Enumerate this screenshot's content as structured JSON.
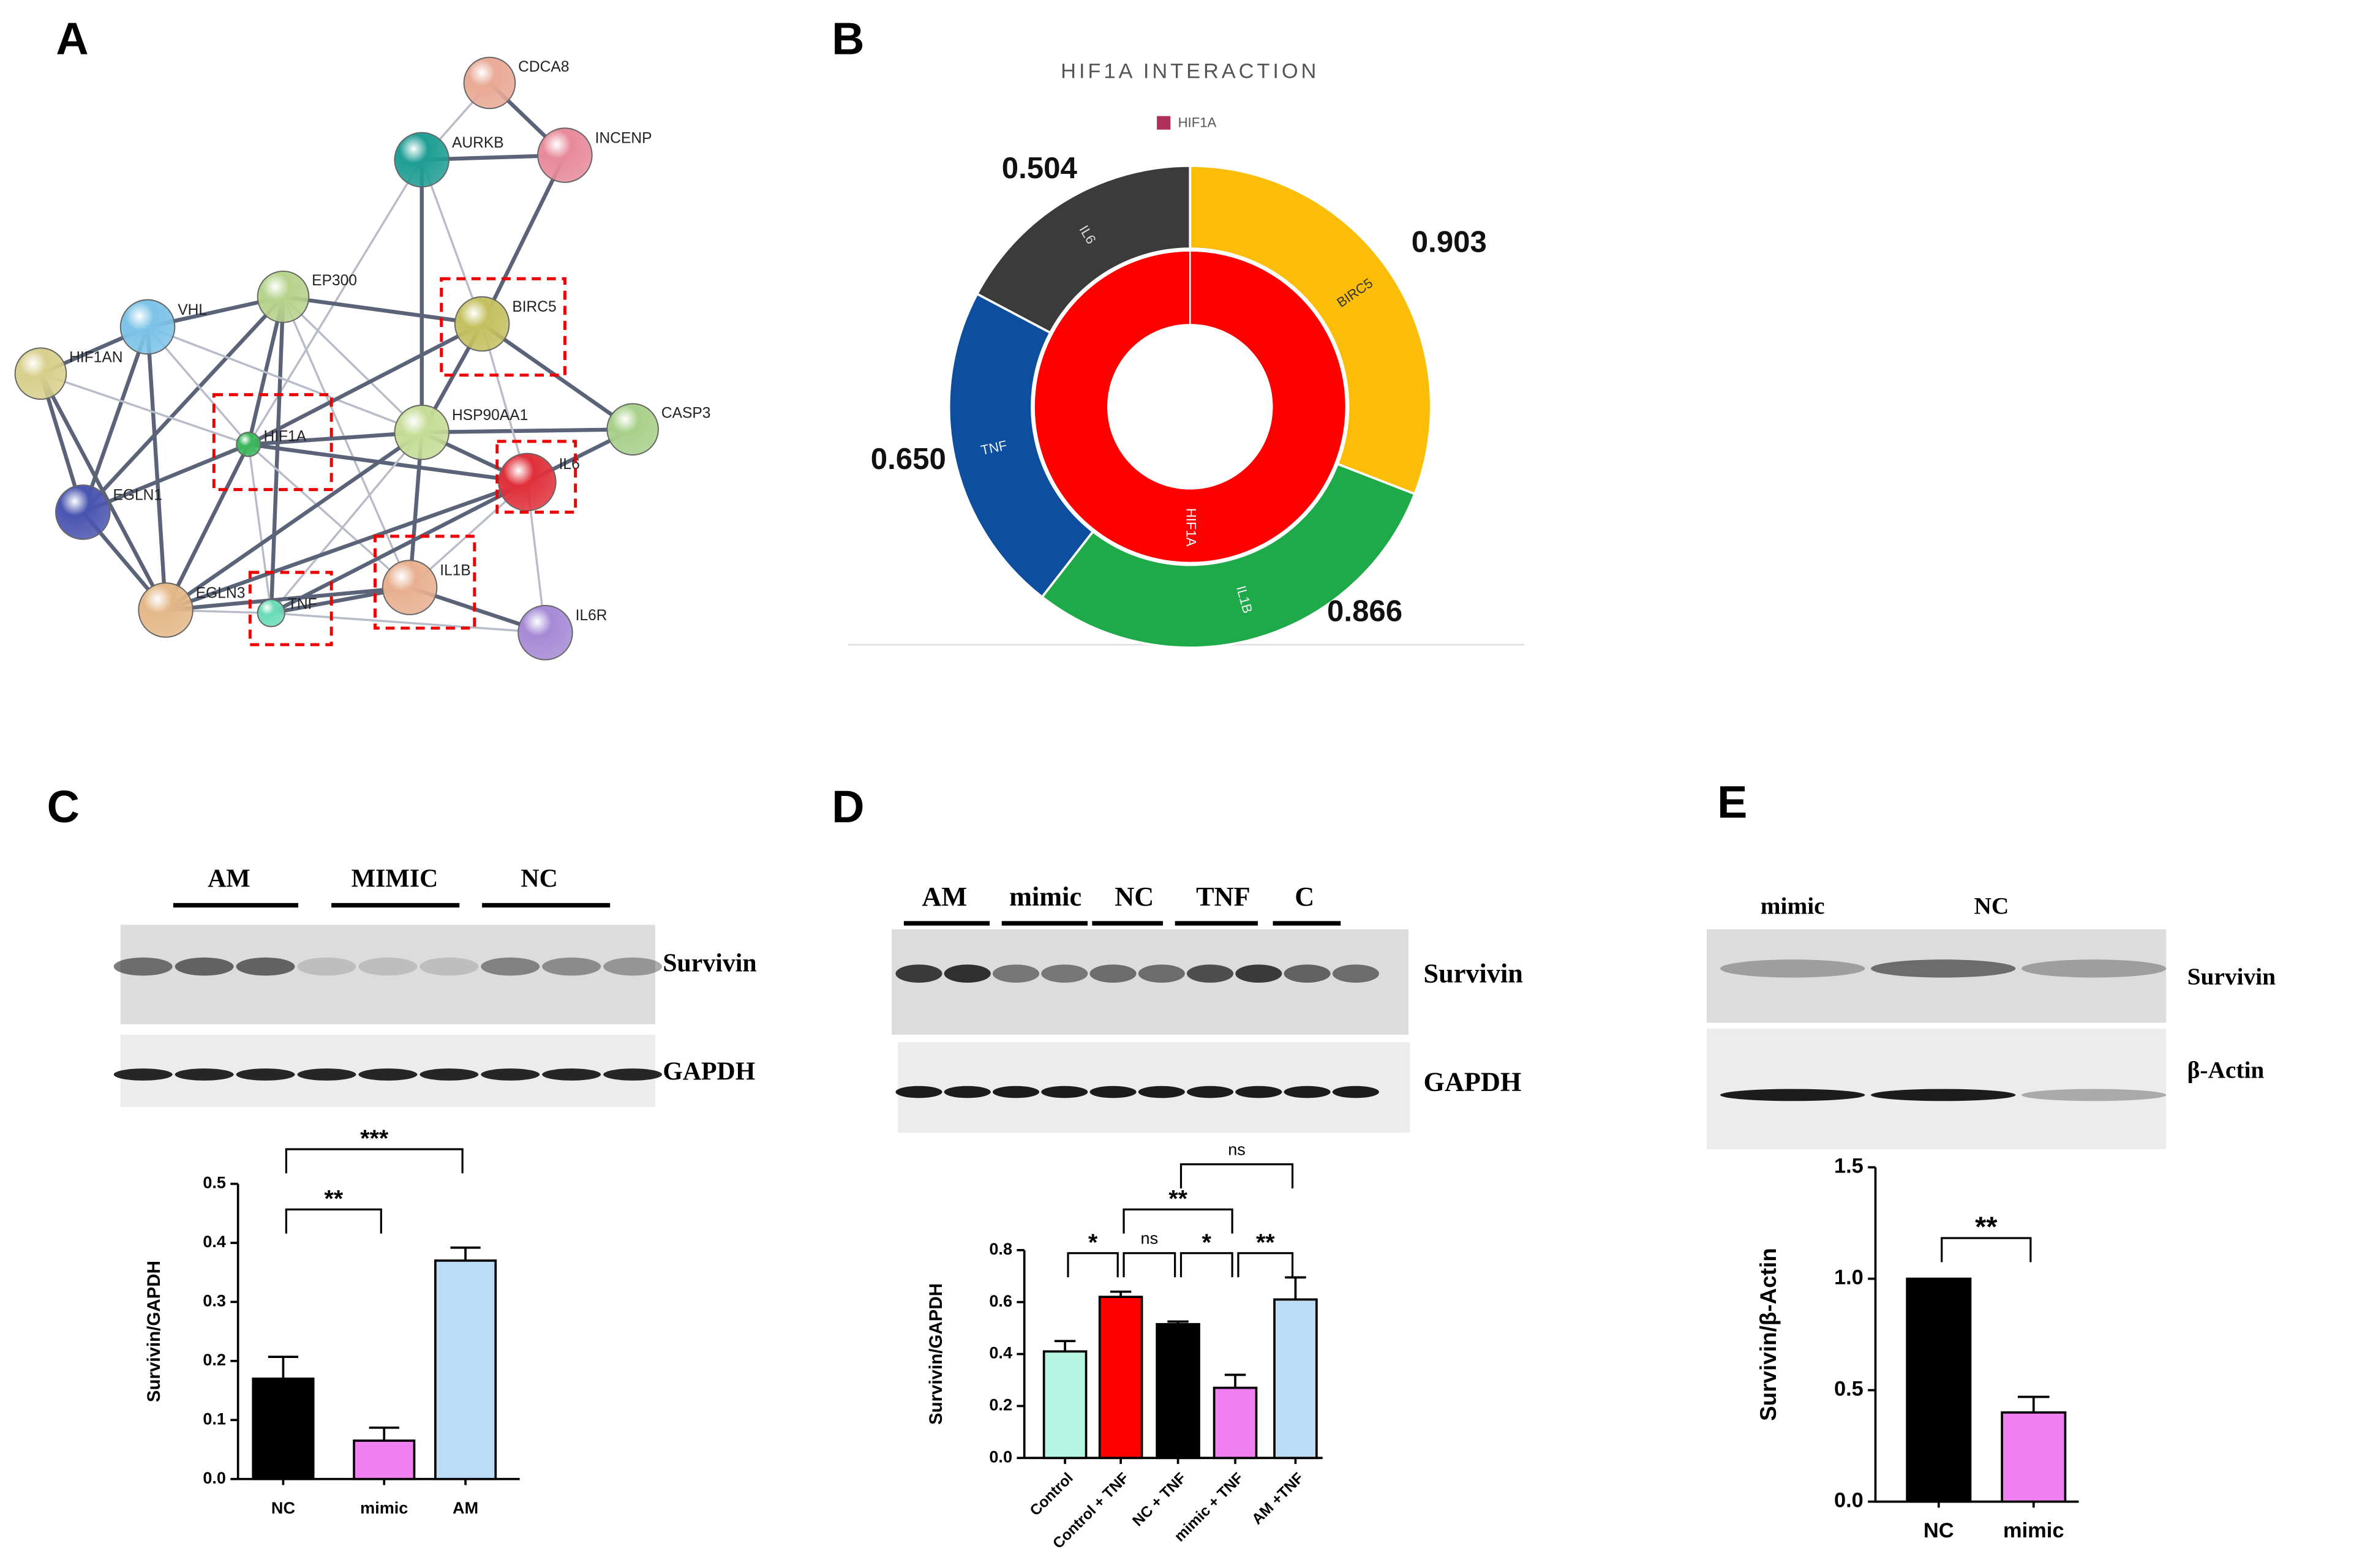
{
  "panel_labels": [
    "A",
    "B",
    "C",
    "D",
    "E"
  ],
  "network": {
    "nodes": [
      {
        "label": "CDCA8",
        "color": "#e9a995"
      },
      {
        "label": "AURKB",
        "color": "#1f9e94"
      },
      {
        "label": "INCENP",
        "color": "#e88a9a"
      },
      {
        "label": "EP300",
        "color": "#b6d38c"
      },
      {
        "label": "VHL",
        "color": "#7cc3e8"
      },
      {
        "label": "BIRC5",
        "color": "#c4c060"
      },
      {
        "label": "HIF1AN",
        "color": "#d8cf8c"
      },
      {
        "label": "HIF1A",
        "color": "#3cb85c"
      },
      {
        "label": "HSP90AA1",
        "color": "#c6dc96"
      },
      {
        "label": "CASP3",
        "color": "#a8d08a"
      },
      {
        "label": "IL6",
        "color": "#e0303a"
      },
      {
        "label": "EGLN1",
        "color": "#4a55b0"
      },
      {
        "label": "EGLN3",
        "color": "#e4b888"
      },
      {
        "label": "TNF",
        "color": "#6cdcb8"
      },
      {
        "label": "IL1B",
        "color": "#e8b090"
      },
      {
        "label": "IL6R",
        "color": "#a58ad6"
      }
    ]
  },
  "blots": [
    {
      "lanes": [
        "AM",
        "MIMIC",
        "NC"
      ],
      "bands": [
        "Survivin",
        "GAPDH"
      ]
    },
    {
      "lanes": [
        "AM",
        "mimic",
        "NC",
        "TNF",
        "C"
      ],
      "bands": [
        "Survivin",
        "GAPDH"
      ]
    },
    {
      "lanes": [
        "mimic",
        "NC"
      ],
      "bands": [
        "Survivin",
        "β-Actin"
      ]
    }
  ],
  "chart_data": [
    {
      "type": "donut",
      "title": "HIF1A INTERACTION",
      "legend": "HIF1A",
      "inner": {
        "name": "HIF1A",
        "color": "#ff0000"
      },
      "categories": [
        "BIRC5",
        "IL1B",
        "TNF",
        "IL6"
      ],
      "values": [
        0.903,
        0.866,
        0.65,
        0.504
      ],
      "value_labels": [
        "0.903",
        "0.866",
        "0.650",
        "0.504"
      ],
      "colors": [
        "#fbbd08",
        "#1faa4a",
        "#0d4f9e",
        "#3b3b3b"
      ]
    },
    {
      "type": "bar",
      "categories": [
        "NC",
        "mimic",
        "AM"
      ],
      "values": [
        0.17,
        0.065,
        0.37
      ],
      "errors": [
        0.037,
        0.022,
        0.022
      ],
      "colors": [
        "#000000",
        "#f080f0",
        "#bcdcf6"
      ],
      "ylabel": "Survivin/GAPDH",
      "ylim": [
        0,
        0.5
      ],
      "yticks": [
        {
          "value": 0,
          "label": "0.0"
        },
        0.1,
        0.2,
        0.3,
        0.4,
        0.5
      ],
      "annotations": [
        {
          "label": "**",
          "between": [
            "NC",
            "mimic"
          ]
        },
        {
          "label": "***",
          "between": [
            "NC",
            "AM"
          ]
        }
      ]
    },
    {
      "type": "bar",
      "categories": [
        "Control",
        "Control + TNF",
        "NC + TNF",
        "mimic + TNF",
        "AM +TNF"
      ],
      "values": [
        0.41,
        0.62,
        0.515,
        0.27,
        0.61
      ],
      "errors": [
        0.04,
        0.02,
        0.01,
        0.05,
        0.085
      ],
      "colors": [
        "#b6f5e2",
        "#ff0000",
        "#000000",
        "#f080f0",
        "#bcdcf6"
      ],
      "ylabel": "Survivin/GAPDH",
      "ylim": [
        0,
        0.8
      ],
      "yticks": [
        {
          "value": 0,
          "label": "0.0"
        },
        0.2,
        0.4,
        0.6,
        0.8
      ],
      "annotations": [
        {
          "label": "*",
          "between": [
            "Control",
            "Control + TNF"
          ]
        },
        {
          "label": "ns",
          "between": [
            "Control + TNF",
            "NC + TNF"
          ]
        },
        {
          "label": "*",
          "between": [
            "NC + TNF",
            "mimic + TNF"
          ]
        },
        {
          "label": "**",
          "between": [
            "mimic + TNF",
            "AM +TNF"
          ]
        },
        {
          "label": "**",
          "between": [
            "Control + TNF",
            "mimic + TNF"
          ]
        },
        {
          "label": "ns",
          "between": [
            "NC + TNF",
            "AM +TNF"
          ]
        }
      ]
    },
    {
      "type": "bar",
      "categories": [
        "NC",
        "mimic"
      ],
      "values": [
        1.0,
        0.4
      ],
      "errors": [
        0,
        0.07
      ],
      "colors": [
        "#000000",
        "#f080f0"
      ],
      "ylabel": "Survivin/β-Actin",
      "ylim": [
        0,
        1.5
      ],
      "yticks": [
        {
          "value": 0,
          "label": "0.0"
        },
        0.5,
        {
          "value": 1,
          "label": "1.0"
        },
        1.5
      ],
      "annotations": [
        {
          "label": "**",
          "between": [
            "NC",
            "mimic"
          ]
        }
      ]
    }
  ]
}
